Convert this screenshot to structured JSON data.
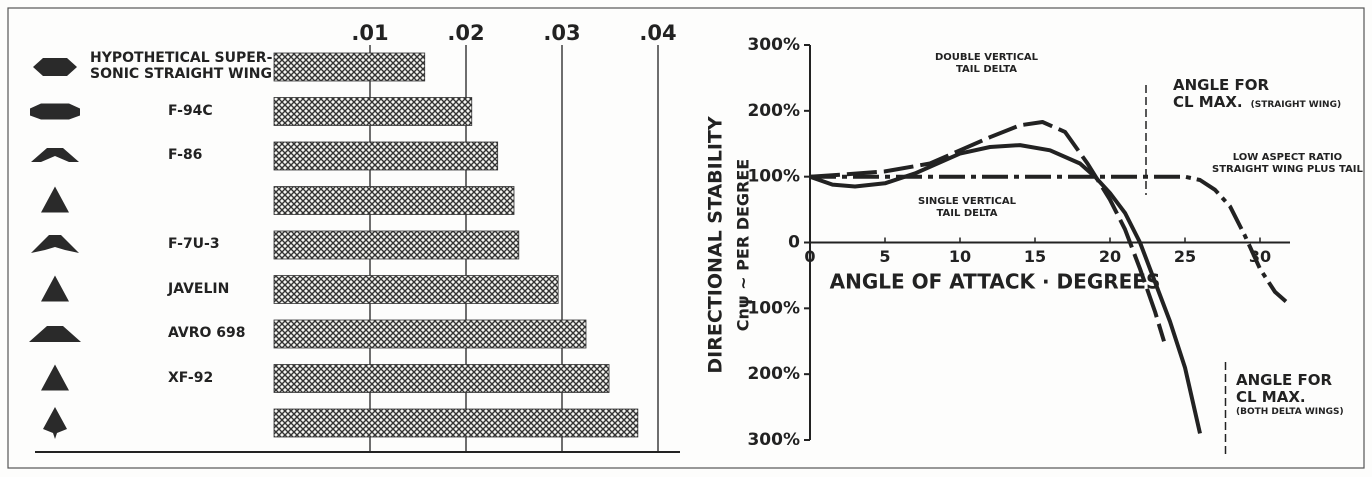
{
  "chart_data": [
    {
      "type": "bar",
      "orientation": "horizontal",
      "categories": [
        "HYPOTHETICAL SUPER-\nSONIC STRAIGHT WING",
        "F-94C",
        "F-86",
        null,
        "F-7U-3",
        "JAVELIN",
        "AVRO 698",
        "XF-92",
        null
      ],
      "values": [
        0.0157,
        0.0206,
        0.0233,
        0.025,
        0.0255,
        0.0296,
        0.0325,
        0.0349,
        0.0379
      ],
      "color": "#333333",
      "xlim": [
        0,
        0.04
      ],
      "xticks": [
        {
          "value": 0.01,
          "label": ".01"
        },
        {
          "value": 0.02,
          "label": ".02"
        },
        {
          "value": 0.03,
          "label": ".03"
        },
        {
          "value": 0.04,
          "label": ".04"
        }
      ],
      "grid": true
    },
    {
      "type": "line",
      "xlabel": "ANGLE OF ATTACK · DEGREES",
      "ylabel": "DIRECTIONAL STABILITY",
      "ylabel2": "Cnψ ~ PER DEGREE",
      "xlim": [
        0,
        32
      ],
      "xticks": [
        0,
        5,
        10,
        15,
        20,
        25,
        30
      ],
      "ylim": [
        -300,
        300
      ],
      "yticks": [
        {
          "value": 300,
          "label": "300%"
        },
        {
          "value": 200,
          "label": "200%"
        },
        {
          "value": 100,
          "label": "100%"
        },
        0,
        {
          "value": -100,
          "label": "100%"
        },
        {
          "value": -200,
          "label": "200%"
        },
        {
          "value": -300,
          "label": "300%"
        }
      ],
      "series": [
        {
          "name": "DOUBLE VERTICAL\nTAIL DELTA",
          "color": "#222222",
          "dash": "dashed",
          "x": [
            0,
            2,
            5,
            8,
            10,
            12,
            14,
            15.5,
            17,
            18.5,
            20,
            21,
            22,
            23,
            23.6
          ],
          "values": [
            100,
            103,
            108,
            120,
            140,
            160,
            178,
            183,
            168,
            120,
            65,
            20,
            -40,
            -105,
            -150
          ]
        },
        {
          "name": "SINGLE VERTICAL\nTAIL DELTA",
          "color": "#222222",
          "dash": "solid",
          "x": [
            0,
            1.5,
            3,
            5,
            7,
            9,
            10,
            12,
            14,
            16,
            18,
            19,
            20,
            21,
            22,
            23,
            24,
            25,
            26
          ],
          "values": [
            100,
            88,
            85,
            90,
            105,
            125,
            135,
            145,
            148,
            140,
            120,
            100,
            75,
            45,
            0,
            -60,
            -120,
            -190,
            -290
          ]
        },
        {
          "name": "LOW ASPECT RATIO\nSTRAIGHT WING PLUS TAIL",
          "color": "#222222",
          "dash": "dashdot",
          "x": [
            0,
            5,
            10,
            15,
            20,
            25,
            26,
            27,
            28,
            29,
            30,
            31,
            32
          ],
          "values": [
            100,
            100,
            100,
            100,
            100,
            100,
            95,
            80,
            55,
            10,
            -40,
            -75,
            -95
          ]
        }
      ],
      "annotations": [
        {
          "x": 22.4,
          "label": "ANGLE FOR\nCL MAX.",
          "note": "(STRAIGHT WING)"
        },
        {
          "x": 27.7,
          "label": "ANGLE FOR\nCL MAX.",
          "note": "(BOTH DELTA WINGS)"
        }
      ]
    }
  ]
}
